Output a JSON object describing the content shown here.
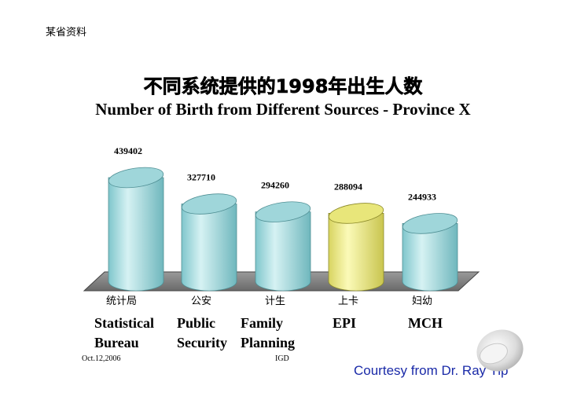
{
  "header": {
    "corner_label": "某省资料",
    "title_cn": "不同系统提供的1998年出生人数",
    "title_en": "Number of Birth from Different Sources - Province X"
  },
  "chart_data": {
    "type": "bar",
    "title": "Number of Birth from Different Sources - Province X",
    "categories": [
      "统计局",
      "公安",
      "计生",
      "上卡",
      "妇幼"
    ],
    "categories_en": [
      [
        "Statistical",
        "Bureau"
      ],
      [
        "Public",
        "Security"
      ],
      [
        "Family",
        "Planning"
      ],
      [
        "EPI",
        ""
      ],
      [
        "MCH",
        ""
      ]
    ],
    "values": [
      439402,
      327710,
      294260,
      288094,
      244933
    ],
    "highlight_index": 3,
    "colors": {
      "bar": "#a9dde0",
      "bar_highlight": "#f2f08a",
      "floor": "#8a8a8a"
    },
    "xlabel": "",
    "ylabel": "",
    "ylim": [
      0,
      460000
    ],
    "grid": false,
    "legend": "none"
  },
  "footer": {
    "date": "Oct.12,2006",
    "org": "IGD",
    "courtesy": "Courtesy from Dr. Ray Yip"
  }
}
